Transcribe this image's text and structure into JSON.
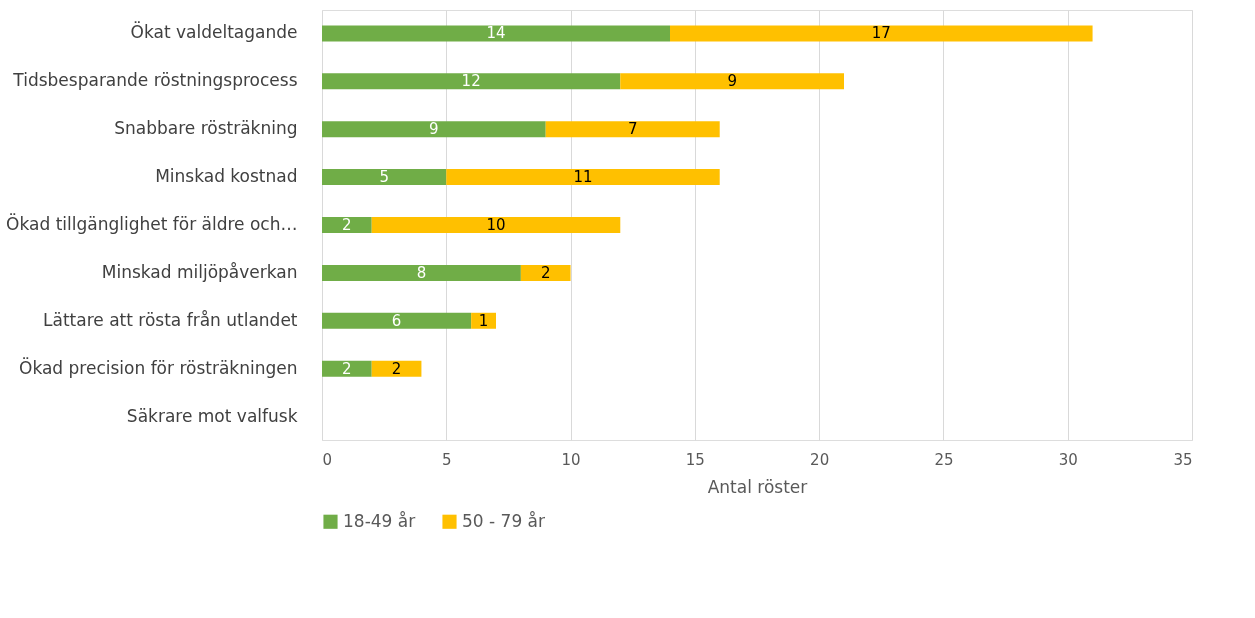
{
  "chart_data": {
    "type": "bar",
    "orientation": "horizontal",
    "stacked": true,
    "xlabel": "Antal röster",
    "categories": [
      "Ökat valdeltagande",
      "Tidsbesparande röstningsprocess",
      "Snabbare rösträkning",
      "Minskad kostnad",
      "Ökad tillgänglighet för äldre och…",
      "Minskad miljöpåverkan",
      "Lättare att rösta från utlandet",
      "Ökad precision för rösträkningen",
      "Säkrare mot valfusk"
    ],
    "series": [
      {
        "name": "18-49 år",
        "color": "#70ad47",
        "values": [
          14,
          12,
          9,
          5,
          2,
          8,
          6,
          2,
          0
        ],
        "value_labels": [
          "14",
          "12",
          "9",
          "5",
          "2",
          "8",
          "6",
          "2",
          null
        ]
      },
      {
        "name": "50 - 79 år",
        "color": "#ffc000",
        "values": [
          17,
          9,
          7,
          11,
          10,
          2,
          1,
          2,
          0
        ],
        "value_labels": [
          "17",
          "9",
          "7",
          "11",
          "10",
          "2",
          "1",
          "2",
          null
        ]
      }
    ],
    "xlim": [
      0,
      35
    ],
    "xticks": [
      0,
      5,
      10,
      15,
      20,
      25,
      30,
      35
    ],
    "grid": "x",
    "legend": "bottom"
  }
}
